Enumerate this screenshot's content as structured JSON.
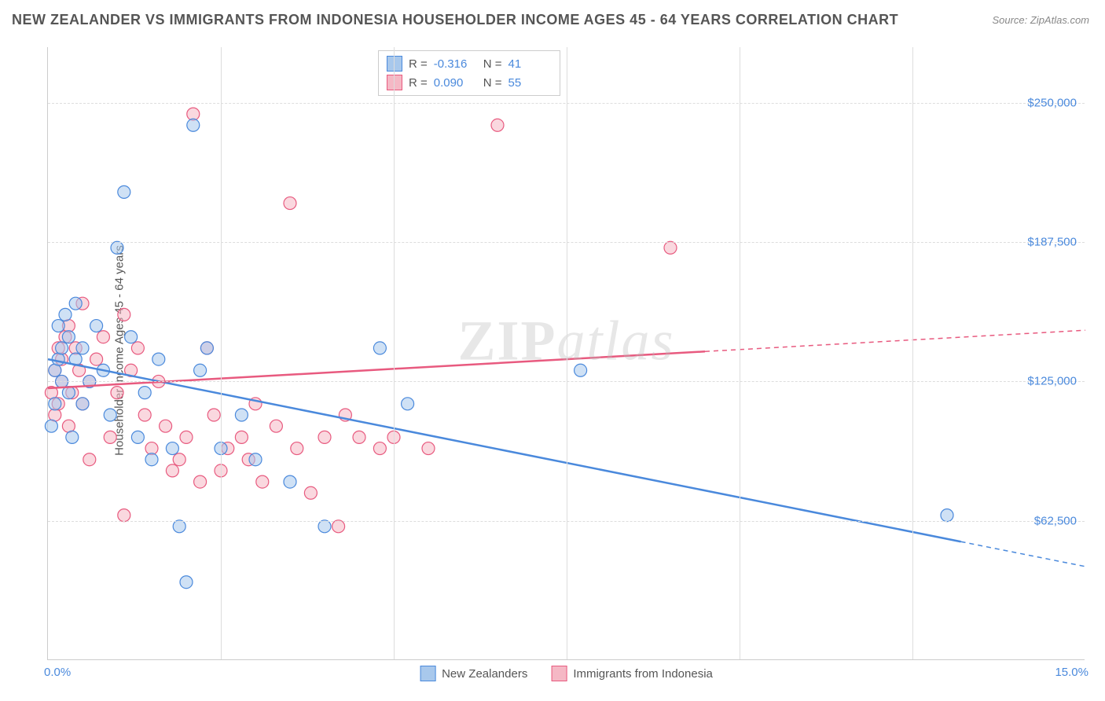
{
  "title": "NEW ZEALANDER VS IMMIGRANTS FROM INDONESIA HOUSEHOLDER INCOME AGES 45 - 64 YEARS CORRELATION CHART",
  "source": "Source: ZipAtlas.com",
  "y_axis_label": "Householder Income Ages 45 - 64 years",
  "watermark_a": "ZIP",
  "watermark_b": "atlas",
  "chart": {
    "type": "scatter",
    "xlim": [
      0,
      15
    ],
    "ylim": [
      0,
      275000
    ],
    "x_ticks": [
      0,
      15
    ],
    "x_tick_labels": [
      "0.0%",
      "15.0%"
    ],
    "x_minor_ticks": [
      2.5,
      5.0,
      7.5,
      10.0,
      12.5
    ],
    "y_ticks": [
      62500,
      125000,
      187500,
      250000
    ],
    "y_tick_labels": [
      "$62,500",
      "$125,000",
      "$187,500",
      "$250,000"
    ],
    "grid_color": "#dddddd",
    "background_color": "#ffffff",
    "series": [
      {
        "name": "New Zealanders",
        "fill": "#a8c8ec",
        "stroke": "#4a89dc",
        "fill_opacity": 0.55,
        "marker_radius": 8,
        "R": "-0.316",
        "N": "41",
        "trend": {
          "x1": 0,
          "y1": 135000,
          "x2": 15,
          "y2": 42000,
          "solid_until_x": 13.2
        },
        "points": [
          [
            0.05,
            105000
          ],
          [
            0.1,
            115000
          ],
          [
            0.1,
            130000
          ],
          [
            0.15,
            135000
          ],
          [
            0.15,
            150000
          ],
          [
            0.2,
            125000
          ],
          [
            0.2,
            140000
          ],
          [
            0.25,
            155000
          ],
          [
            0.3,
            120000
          ],
          [
            0.3,
            145000
          ],
          [
            0.35,
            100000
          ],
          [
            0.4,
            135000
          ],
          [
            0.4,
            160000
          ],
          [
            0.5,
            140000
          ],
          [
            0.5,
            115000
          ],
          [
            0.6,
            125000
          ],
          [
            0.7,
            150000
          ],
          [
            0.8,
            130000
          ],
          [
            0.9,
            110000
          ],
          [
            1.0,
            185000
          ],
          [
            1.1,
            210000
          ],
          [
            1.2,
            145000
          ],
          [
            1.3,
            100000
          ],
          [
            1.4,
            120000
          ],
          [
            1.5,
            90000
          ],
          [
            1.6,
            135000
          ],
          [
            1.8,
            95000
          ],
          [
            1.9,
            60000
          ],
          [
            2.0,
            35000
          ],
          [
            2.1,
            240000
          ],
          [
            2.2,
            130000
          ],
          [
            2.3,
            140000
          ],
          [
            2.5,
            95000
          ],
          [
            2.8,
            110000
          ],
          [
            3.0,
            90000
          ],
          [
            3.5,
            80000
          ],
          [
            4.0,
            60000
          ],
          [
            4.8,
            140000
          ],
          [
            5.2,
            115000
          ],
          [
            7.7,
            130000
          ],
          [
            13.0,
            65000
          ]
        ]
      },
      {
        "name": "Immigrants from Indonesia",
        "fill": "#f5b8c5",
        "stroke": "#e85a7f",
        "fill_opacity": 0.55,
        "marker_radius": 8,
        "R": "0.090",
        "N": "55",
        "trend": {
          "x1": 0,
          "y1": 122000,
          "x2": 15,
          "y2": 148000,
          "solid_until_x": 9.5
        },
        "points": [
          [
            0.05,
            120000
          ],
          [
            0.1,
            130000
          ],
          [
            0.1,
            110000
          ],
          [
            0.15,
            140000
          ],
          [
            0.15,
            115000
          ],
          [
            0.2,
            125000
          ],
          [
            0.2,
            135000
          ],
          [
            0.25,
            145000
          ],
          [
            0.3,
            150000
          ],
          [
            0.3,
            105000
          ],
          [
            0.35,
            120000
          ],
          [
            0.4,
            140000
          ],
          [
            0.45,
            130000
          ],
          [
            0.5,
            115000
          ],
          [
            0.5,
            160000
          ],
          [
            0.6,
            125000
          ],
          [
            0.7,
            135000
          ],
          [
            0.8,
            145000
          ],
          [
            0.9,
            100000
          ],
          [
            1.0,
            120000
          ],
          [
            1.1,
            155000
          ],
          [
            1.2,
            130000
          ],
          [
            1.3,
            140000
          ],
          [
            1.4,
            110000
          ],
          [
            1.5,
            95000
          ],
          [
            1.6,
            125000
          ],
          [
            1.7,
            105000
          ],
          [
            1.8,
            85000
          ],
          [
            1.9,
            90000
          ],
          [
            2.0,
            100000
          ],
          [
            2.1,
            245000
          ],
          [
            2.2,
            80000
          ],
          [
            2.3,
            140000
          ],
          [
            2.4,
            110000
          ],
          [
            2.5,
            85000
          ],
          [
            2.6,
            95000
          ],
          [
            2.8,
            100000
          ],
          [
            2.9,
            90000
          ],
          [
            3.0,
            115000
          ],
          [
            3.1,
            80000
          ],
          [
            3.3,
            105000
          ],
          [
            3.5,
            205000
          ],
          [
            3.6,
            95000
          ],
          [
            3.8,
            75000
          ],
          [
            4.0,
            100000
          ],
          [
            4.2,
            60000
          ],
          [
            4.3,
            110000
          ],
          [
            4.5,
            100000
          ],
          [
            4.8,
            95000
          ],
          [
            5.0,
            100000
          ],
          [
            5.5,
            95000
          ],
          [
            6.5,
            240000
          ],
          [
            9.0,
            185000
          ],
          [
            0.6,
            90000
          ],
          [
            1.1,
            65000
          ]
        ]
      }
    ]
  },
  "legend": {
    "series1_label": "New Zealanders",
    "series2_label": "Immigrants from Indonesia"
  }
}
